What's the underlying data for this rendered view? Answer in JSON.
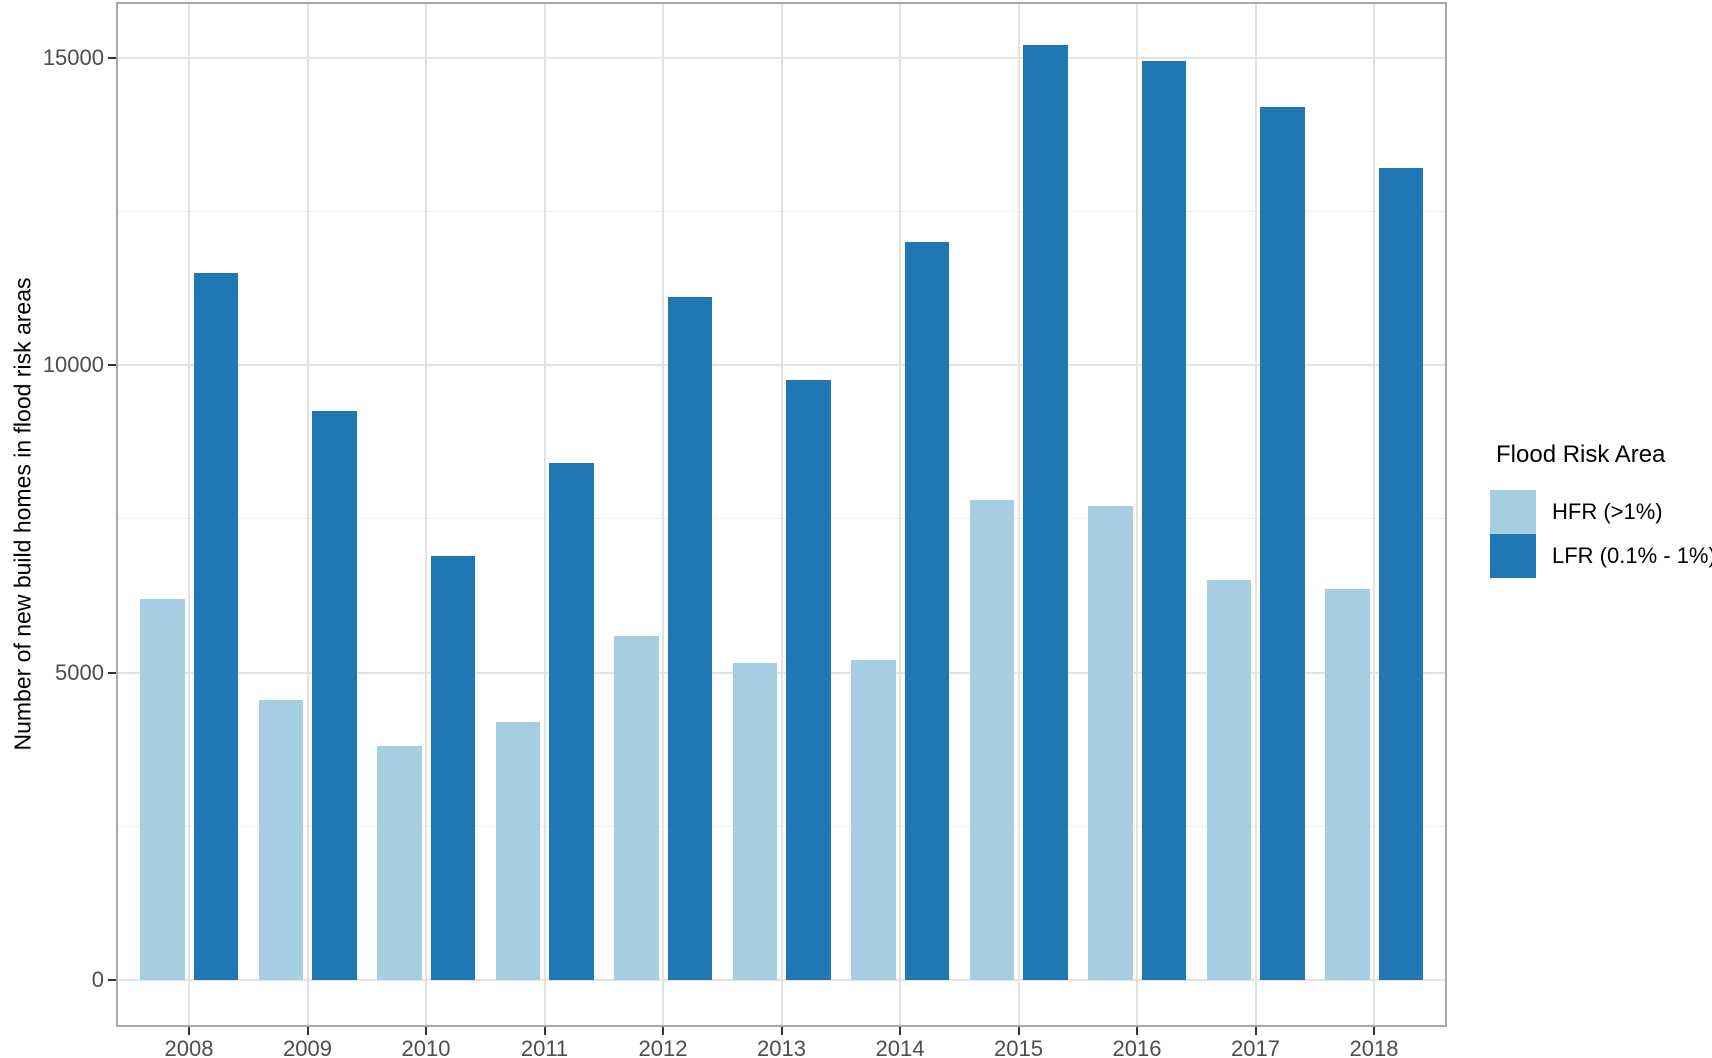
{
  "chart_data": {
    "type": "bar",
    "title": "",
    "categories": [
      "2008",
      "2009",
      "2010",
      "2011",
      "2012",
      "2013",
      "2014",
      "2015",
      "2016",
      "2017",
      "2018"
    ],
    "series": [
      {
        "name": "HFR (>1%)",
        "color": "#a6cee3",
        "values": [
          6200,
          4550,
          3800,
          4200,
          5600,
          5150,
          5200,
          7800,
          7700,
          6500,
          6350
        ]
      },
      {
        "name": "LFR (0.1% - 1%)",
        "color": "#2177b4",
        "values": [
          11500,
          9250,
          6900,
          8400,
          11100,
          9750,
          12000,
          15200,
          14950,
          14200,
          13200
        ]
      }
    ],
    "xlabel": "",
    "ylabel": "Number of new build homes in flood risk areas",
    "ylim": [
      -750,
      15850
    ],
    "yticks": [
      0,
      5000,
      10000,
      15000
    ],
    "ytick_labels": [
      "0",
      "5000",
      "10000",
      "15000"
    ],
    "yticks_minor": [
      2500,
      7500,
      12500
    ],
    "grid": {
      "horizontal": "major+minor",
      "vertical": "major-only"
    },
    "legend": {
      "title": "Flood Risk Area",
      "position": "right"
    }
  },
  "style": {
    "hfr_color": "#a6cee3",
    "lfr_color": "#2177b4",
    "gridline_major": "#e3e3e3",
    "gridline_minor": "#efefef",
    "panel_border": "#a8a8a8",
    "tick_color": "#333333",
    "tick_label_color": "#4d4d4d",
    "axis_title_color": "#000000"
  }
}
